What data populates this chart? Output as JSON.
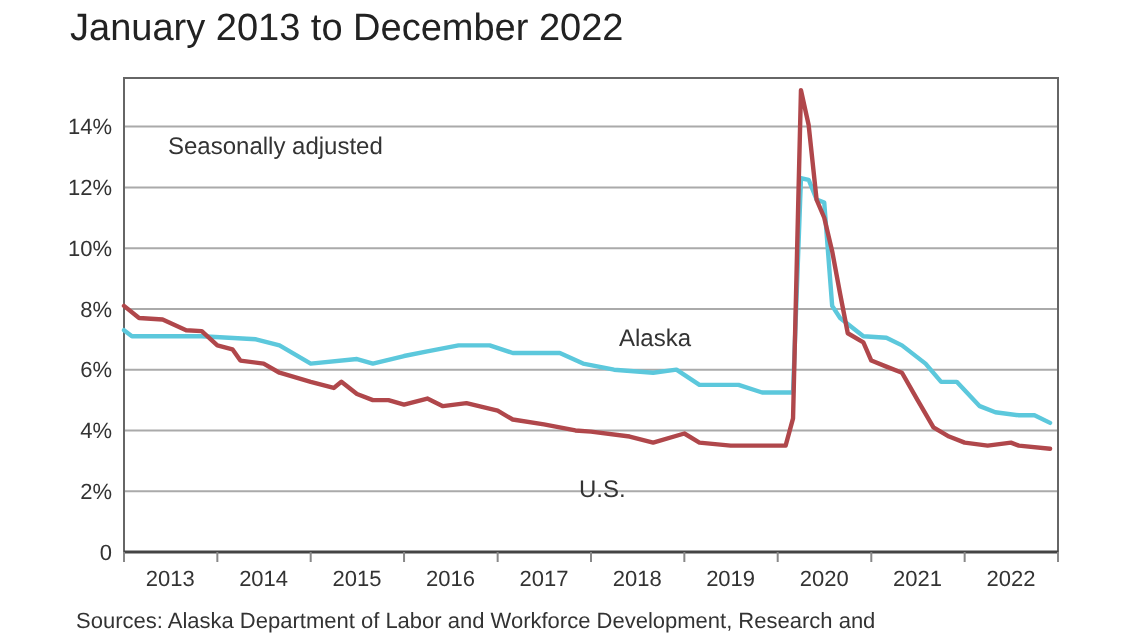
{
  "chart_data": {
    "type": "line",
    "title": "January 2013 to December 2022",
    "annotations": [
      "Seasonally adjusted",
      "Sources: Alaska Department of Labor and Workforce Development, Research and"
    ],
    "xlim": [
      "2013-01",
      "2023-01"
    ],
    "xticks": [
      {
        "value": "2013-01",
        "label": null
      },
      {
        "value": "2013-07",
        "label": "2013"
      },
      {
        "value": "2014-01",
        "label": null
      },
      {
        "value": "2014-07",
        "label": "2014"
      },
      {
        "value": "2015-01",
        "label": null
      },
      {
        "value": "2015-07",
        "label": "2015"
      },
      {
        "value": "2016-01",
        "label": null
      },
      {
        "value": "2016-07",
        "label": "2016"
      },
      {
        "value": "2017-01",
        "label": null
      },
      {
        "value": "2017-07",
        "label": "2017"
      },
      {
        "value": "2018-01",
        "label": null
      },
      {
        "value": "2018-07",
        "label": "2018"
      },
      {
        "value": "2019-01",
        "label": null
      },
      {
        "value": "2019-07",
        "label": "2019"
      },
      {
        "value": "2020-01",
        "label": null
      },
      {
        "value": "2020-07",
        "label": "2020"
      },
      {
        "value": "2021-01",
        "label": null
      },
      {
        "value": "2021-07",
        "label": "2021"
      },
      {
        "value": "2022-01",
        "label": null
      },
      {
        "value": "2022-07",
        "label": "2022"
      },
      {
        "value": "2023-01",
        "label": null
      }
    ],
    "ylim": [
      0,
      15.6
    ],
    "yticks": [
      0,
      {
        "value": 2,
        "label": "2%"
      },
      {
        "value": 4,
        "label": "4%"
      },
      {
        "value": 6,
        "label": "6%"
      },
      {
        "value": 8,
        "label": "8%"
      },
      {
        "value": 10,
        "label": "10%"
      },
      {
        "value": 12,
        "label": "12%"
      },
      {
        "value": 14,
        "label": "14%"
      }
    ],
    "grid": "y",
    "legend": false,
    "series": [
      {
        "name": "Alaska",
        "color": "#5cc8dc",
        "x": [
          "2013-01",
          "2013-02",
          "2013-11",
          "2014-06",
          "2014-09",
          "2015-01",
          "2015-07",
          "2015-09",
          "2016-01",
          "2016-04",
          "2016-08",
          "2016-12",
          "2017-03",
          "2017-09",
          "2017-12",
          "2018-04",
          "2018-09",
          "2018-12",
          "2019-03",
          "2019-08",
          "2019-11",
          "2020-03",
          "2020-04",
          "2020-05",
          "2020-06",
          "2020-07",
          "2020-08",
          "2020-09",
          "2020-11",
          "2020-12",
          "2021-03",
          "2021-05",
          "2021-08",
          "2021-10",
          "2021-12",
          "2022-03",
          "2022-05",
          "2022-08",
          "2022-10",
          "2022-12"
        ],
        "values": [
          7.3,
          7.1,
          7.1,
          7.0,
          6.8,
          6.2,
          6.35,
          6.2,
          6.45,
          6.6,
          6.8,
          6.8,
          6.55,
          6.55,
          6.2,
          6.0,
          5.9,
          6.0,
          5.5,
          5.5,
          5.25,
          5.25,
          12.3,
          12.25,
          11.6,
          11.5,
          8.1,
          7.7,
          7.3,
          7.1,
          7.05,
          6.8,
          6.2,
          5.6,
          5.6,
          4.8,
          4.6,
          4.5,
          4.5,
          4.25
        ]
      },
      {
        "name": "U.S.",
        "color": "#b0474b",
        "x": [
          "2013-01",
          "2013-03",
          "2013-06",
          "2013-09",
          "2013-11",
          "2014-01",
          "2014-03",
          "2014-04",
          "2014-07",
          "2014-09",
          "2015-01",
          "2015-04",
          "2015-05",
          "2015-07",
          "2015-09",
          "2015-11",
          "2016-01",
          "2016-04",
          "2016-06",
          "2016-09",
          "2017-01",
          "2017-03",
          "2017-07",
          "2017-11",
          "2018-01",
          "2018-06",
          "2018-09",
          "2019-01",
          "2019-03",
          "2019-07",
          "2019-11",
          "2020-02",
          "2020-03",
          "2020-04",
          "2020-05",
          "2020-06",
          "2020-07",
          "2020-08",
          "2020-09",
          "2020-10",
          "2020-12",
          "2021-01",
          "2021-03",
          "2021-05",
          "2021-07",
          "2021-09",
          "2021-11",
          "2022-01",
          "2022-04",
          "2022-07",
          "2022-08",
          "2022-12"
        ],
        "values": [
          8.1,
          7.7,
          7.65,
          7.3,
          7.27,
          6.8,
          6.67,
          6.3,
          6.2,
          5.9,
          5.6,
          5.4,
          5.6,
          5.2,
          5.0,
          5.0,
          4.85,
          5.05,
          4.8,
          4.9,
          4.65,
          4.36,
          4.2,
          4.0,
          3.96,
          3.8,
          3.6,
          3.9,
          3.6,
          3.5,
          3.5,
          3.5,
          4.4,
          15.2,
          14.05,
          11.6,
          11.0,
          9.9,
          8.5,
          7.2,
          6.9,
          6.3,
          6.1,
          5.9,
          5.0,
          4.1,
          3.8,
          3.6,
          3.5,
          3.6,
          3.5,
          3.4
        ]
      }
    ]
  }
}
